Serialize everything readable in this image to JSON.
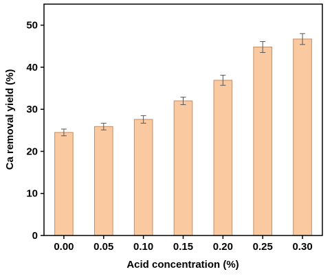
{
  "chart_data": {
    "type": "bar",
    "xlabel": "Acid concentration (%)",
    "ylabel": "Ca removal yield (%)",
    "categories": [
      "0.00",
      "0.05",
      "0.10",
      "0.15",
      "0.20",
      "0.25",
      "0.30"
    ],
    "values": [
      24.5,
      25.9,
      27.6,
      32.0,
      36.9,
      44.8,
      46.7
    ],
    "errors": [
      0.8,
      0.8,
      0.9,
      0.9,
      1.2,
      1.3,
      1.3
    ],
    "ylim": [
      0,
      55
    ],
    "yticks": [
      "0",
      "10",
      "20",
      "30",
      "40",
      "50"
    ],
    "grid": false,
    "bar_color": "#fbc9a0",
    "bar_edge_color": "#c58b60"
  }
}
